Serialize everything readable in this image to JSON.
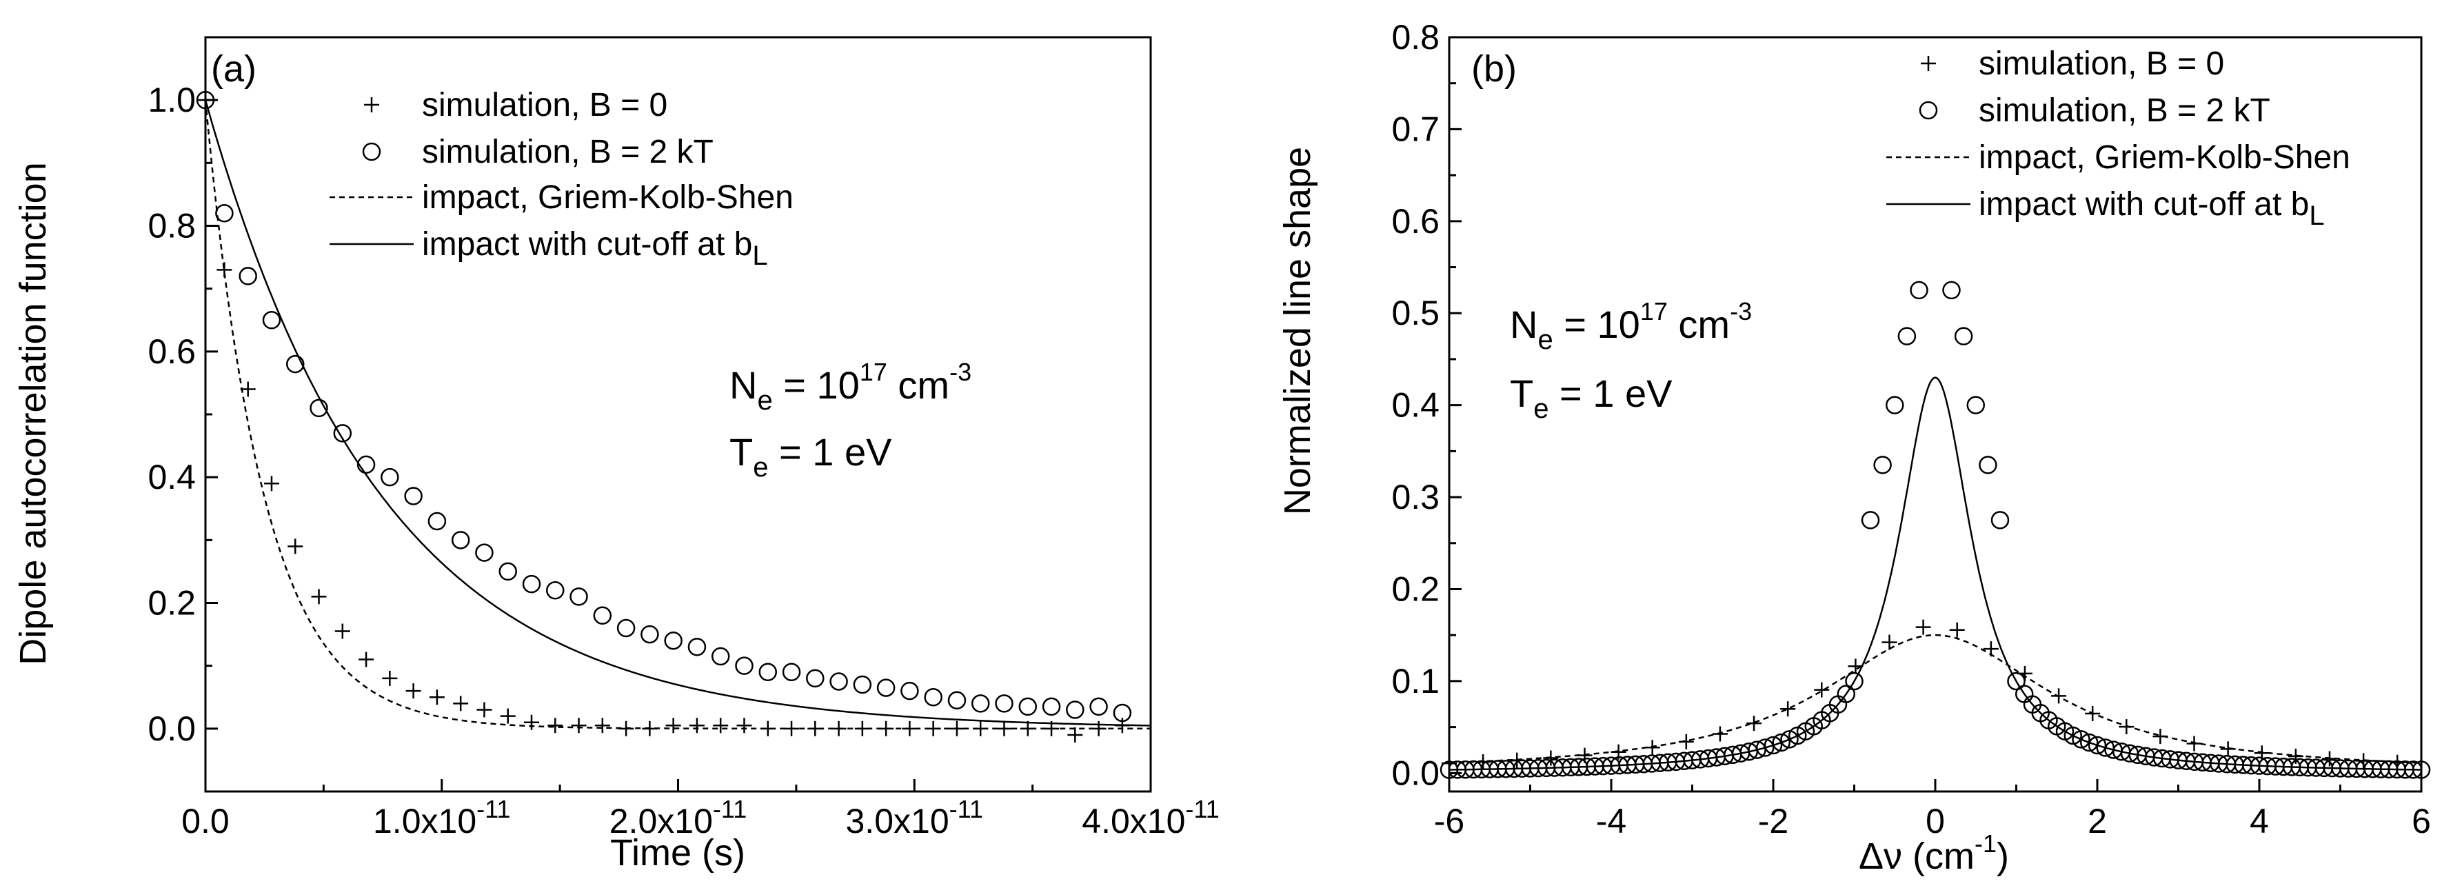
{
  "chart_data": [
    {
      "type": "scatter",
      "panel_label": "(a)",
      "xlabel": "Time (s)",
      "ylabel": "Dipole autocorrelation function",
      "xlim": [
        0,
        4e-11
      ],
      "ylim": [
        -0.1,
        1.1
      ],
      "x_ticks": [
        0,
        1e-11,
        2e-11,
        3e-11,
        4e-11
      ],
      "x_tick_labels": [
        {
          "mant": "0.0",
          "exp": ""
        },
        {
          "mant": "1.0x10",
          "exp": "-11"
        },
        {
          "mant": "2.0x10",
          "exp": "-11"
        },
        {
          "mant": "3.0x10",
          "exp": "-11"
        },
        {
          "mant": "4.0x10",
          "exp": "-11"
        }
      ],
      "y_ticks": [
        0.0,
        0.2,
        0.4,
        0.6,
        0.8,
        1.0
      ],
      "y_tick_labels": [
        "0.0",
        "0.2",
        "0.4",
        "0.6",
        "0.8",
        "1.0"
      ],
      "legend": {
        "plus": "simulation, B = 0",
        "circle": "simulation, B = 2 kT",
        "dashed": "impact, Griem-Kolb-Shen",
        "solid_main": "impact with cut-off at b",
        "solid_sub": "L"
      },
      "annotations": {
        "ne_main": "N",
        "ne_sub": "e",
        "ne_mid": " = 10",
        "ne_exp": "17",
        "ne_unit": " cm",
        "ne_uexp": "-3",
        "te_main": "T",
        "te_sub": "e",
        "te_rest": " = 1 eV"
      },
      "series": [
        {
          "name": "simulation, B = 0",
          "marker": "plus",
          "x": [
            0,
            8e-13,
            1.8e-12,
            2.8e-12,
            3.8e-12,
            4.8e-12,
            5.8e-12,
            6.8e-12,
            7.8e-12,
            8.8e-12,
            9.8e-12,
            1.08e-11,
            1.18e-11,
            1.28e-11,
            1.38e-11,
            1.48e-11,
            1.58e-11,
            1.68e-11,
            1.78e-11,
            1.88e-11,
            1.98e-11,
            2.08e-11,
            2.18e-11,
            2.28e-11,
            2.38e-11,
            2.48e-11,
            2.58e-11,
            2.68e-11,
            2.78e-11,
            2.88e-11,
            2.98e-11,
            3.08e-11,
            3.18e-11,
            3.28e-11,
            3.38e-11,
            3.48e-11,
            3.58e-11,
            3.68e-11,
            3.78e-11,
            3.88e-11
          ],
          "y": [
            1.0,
            0.73,
            0.54,
            0.39,
            0.29,
            0.21,
            0.155,
            0.11,
            0.08,
            0.06,
            0.05,
            0.04,
            0.03,
            0.02,
            0.01,
            0.005,
            0.005,
            0.005,
            0.0,
            0.0,
            0.005,
            0.005,
            0.005,
            0.005,
            0.0,
            0.0,
            0.0,
            0.0,
            0.0,
            0.0,
            0.0,
            0.0,
            0.0,
            0.0,
            0.0,
            0.0,
            0.0,
            -0.01,
            0.0,
            0.005
          ]
        },
        {
          "name": "simulation, B = 2 kT",
          "marker": "circle",
          "x": [
            0,
            8e-13,
            1.8e-12,
            2.8e-12,
            3.8e-12,
            4.8e-12,
            5.8e-12,
            6.8e-12,
            7.8e-12,
            8.8e-12,
            9.8e-12,
            1.08e-11,
            1.18e-11,
            1.28e-11,
            1.38e-11,
            1.48e-11,
            1.58e-11,
            1.68e-11,
            1.78e-11,
            1.88e-11,
            1.98e-11,
            2.08e-11,
            2.18e-11,
            2.28e-11,
            2.38e-11,
            2.48e-11,
            2.58e-11,
            2.68e-11,
            2.78e-11,
            2.88e-11,
            2.98e-11,
            3.08e-11,
            3.18e-11,
            3.28e-11,
            3.38e-11,
            3.48e-11,
            3.58e-11,
            3.68e-11,
            3.78e-11,
            3.88e-11
          ],
          "y": [
            1.0,
            0.82,
            0.72,
            0.65,
            0.58,
            0.51,
            0.47,
            0.42,
            0.4,
            0.37,
            0.33,
            0.3,
            0.28,
            0.25,
            0.23,
            0.22,
            0.21,
            0.18,
            0.16,
            0.15,
            0.14,
            0.13,
            0.115,
            0.1,
            0.09,
            0.09,
            0.08,
            0.075,
            0.07,
            0.065,
            0.06,
            0.05,
            0.045,
            0.04,
            0.04,
            0.035,
            0.035,
            0.03,
            0.035,
            0.025
          ]
        },
        {
          "name": "impact, Griem-Kolb-Shen",
          "line": "dashed",
          "model": "exp",
          "tau": 2.5e-12
        },
        {
          "name": "impact with cut-off at bL",
          "line": "solid",
          "model": "exp",
          "tau": 7.5e-12
        }
      ]
    },
    {
      "type": "scatter",
      "panel_label": "(b)",
      "xlabel_main": "Δν (cm",
      "xlabel_exp": "-1",
      "xlabel_tail": ")",
      "ylabel": "Normalized line shape",
      "xlim": [
        -6,
        6
      ],
      "ylim": [
        -0.02,
        0.8
      ],
      "x_ticks": [
        -6,
        -4,
        -2,
        0,
        2,
        4,
        6
      ],
      "x_tick_labels": [
        "-6",
        "-4",
        "-2",
        "0",
        "2",
        "4",
        "6"
      ],
      "y_ticks": [
        0.0,
        0.1,
        0.2,
        0.3,
        0.4,
        0.5,
        0.6,
        0.7,
        0.8
      ],
      "y_tick_labels": [
        "0.0",
        "0.1",
        "0.2",
        "0.3",
        "0.4",
        "0.5",
        "0.6",
        "0.7",
        "0.8"
      ],
      "legend": {
        "plus": "simulation, B = 0",
        "circle": "simulation, B = 2 kT",
        "dashed": "impact, Griem-Kolb-Shen",
        "solid_main": "impact with cut-off at b",
        "solid_sub": "L"
      },
      "annotations": {
        "ne_main": "N",
        "ne_sub": "e",
        "ne_mid": " = 10",
        "ne_exp": "17",
        "ne_unit": " cm",
        "ne_uexp": "-3",
        "te_main": "T",
        "te_sub": "e",
        "te_rest": " = 1 eV"
      },
      "series": [
        {
          "name": "simulation, B = 0",
          "marker": "plus",
          "model": "lorentz",
          "peak": 0.16,
          "hwhm": 1.6,
          "step": 0.418
        },
        {
          "name": "simulation, B = 2 kT",
          "marker": "circle",
          "x": [
            -0.2,
            0.2,
            -0.35,
            0.35,
            -0.5,
            0.5,
            -0.65,
            0.65,
            -0.8,
            0.8
          ],
          "y": [
            0.525,
            0.525,
            0.475,
            0.475,
            0.4,
            0.4,
            0.335,
            0.335,
            0.275,
            0.275
          ],
          "wing_model": "lorentz",
          "wing_peak": 0.43,
          "wing_hwhm": 0.55,
          "wing_step": 0.1
        },
        {
          "name": "impact, Griem-Kolb-Shen",
          "line": "dashed",
          "model": "lorentz",
          "peak": 0.15,
          "hwhm": 1.7
        },
        {
          "name": "impact with cut-off at bL",
          "line": "solid",
          "model": "lorentz",
          "peak": 0.43,
          "hwhm": 0.55
        }
      ]
    }
  ]
}
